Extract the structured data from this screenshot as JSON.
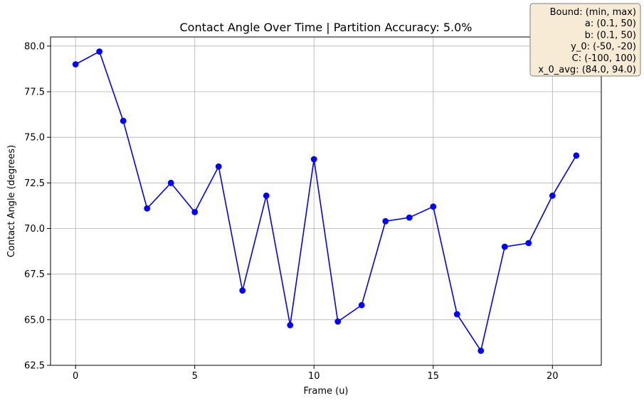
{
  "chart_data": {
    "type": "line",
    "title": "Contact Angle Over Time | Partition Accuracy: 5.0%",
    "xlabel": "Frame (u)",
    "ylabel": "Contact Angle (degrees)",
    "xlim": [
      -1.05,
      22.05
    ],
    "ylim": [
      62.5,
      80.5
    ],
    "xticks": [
      0,
      5,
      10,
      15,
      20
    ],
    "xtick_labels": [
      "0",
      "5",
      "10",
      "15",
      "20"
    ],
    "yticks": [
      62.5,
      65.0,
      67.5,
      70.0,
      72.5,
      75.0,
      77.5,
      80.0
    ],
    "ytick_labels": [
      "62.5",
      "65.0",
      "67.5",
      "70.0",
      "72.5",
      "75.0",
      "77.5",
      "80.0"
    ],
    "grid": true,
    "series": [
      {
        "color": "#0000ff",
        "marker": "circle",
        "x": [
          0,
          1,
          2,
          3,
          4,
          5,
          6,
          7,
          8,
          9,
          10,
          11,
          12,
          13,
          14,
          15,
          16,
          17,
          18,
          19,
          20,
          21
        ],
        "values": [
          79.0,
          79.7,
          75.9,
          71.1,
          72.5,
          70.9,
          73.4,
          66.6,
          71.8,
          64.7,
          73.8,
          64.9,
          65.8,
          70.4,
          70.6,
          71.2,
          65.3,
          63.3,
          69.0,
          69.2,
          71.8,
          74.0
        ]
      }
    ],
    "annotation_box": {
      "lines": [
        "Bound: (min, max)",
        "a: (0.1, 50)",
        "b: (0.1, 50)",
        "y_0: (-50, -20)",
        "C: (-100, 100)",
        "x_0_avg: (84.0, 94.0)"
      ],
      "facecolor": "#f7ebd6",
      "edgecolor": "#7f7f7f"
    }
  }
}
